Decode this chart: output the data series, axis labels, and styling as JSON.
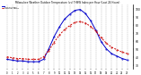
{
  "title": "Milwaukee Weather Outdoor Temperature (vs) THSW Index per Hour (Last 24 Hours)",
  "temp_color": "#cc0000",
  "thsw_color": "#0000cc",
  "background": "#ffffff",
  "grid_color": "#888888",
  "ylim": [
    25,
    105
  ],
  "yticks": [
    30,
    40,
    50,
    60,
    70,
    80,
    90,
    100
  ],
  "hours": [
    0,
    1,
    2,
    3,
    4,
    5,
    6,
    7,
    8,
    9,
    10,
    11,
    12,
    13,
    14,
    15,
    16,
    17,
    18,
    19,
    20,
    21,
    22,
    23
  ],
  "temp": [
    40,
    39,
    38,
    38,
    37,
    37,
    37,
    40,
    48,
    58,
    67,
    74,
    79,
    83,
    84,
    82,
    78,
    72,
    64,
    57,
    52,
    49,
    46,
    44
  ],
  "thsw": [
    37,
    36,
    35,
    35,
    34,
    34,
    34,
    37,
    50,
    65,
    77,
    87,
    93,
    98,
    99,
    94,
    85,
    73,
    59,
    50,
    44,
    41,
    38,
    36
  ],
  "legend_temp": "Outdoor Temp",
  "legend_thsw": "THSW Index"
}
